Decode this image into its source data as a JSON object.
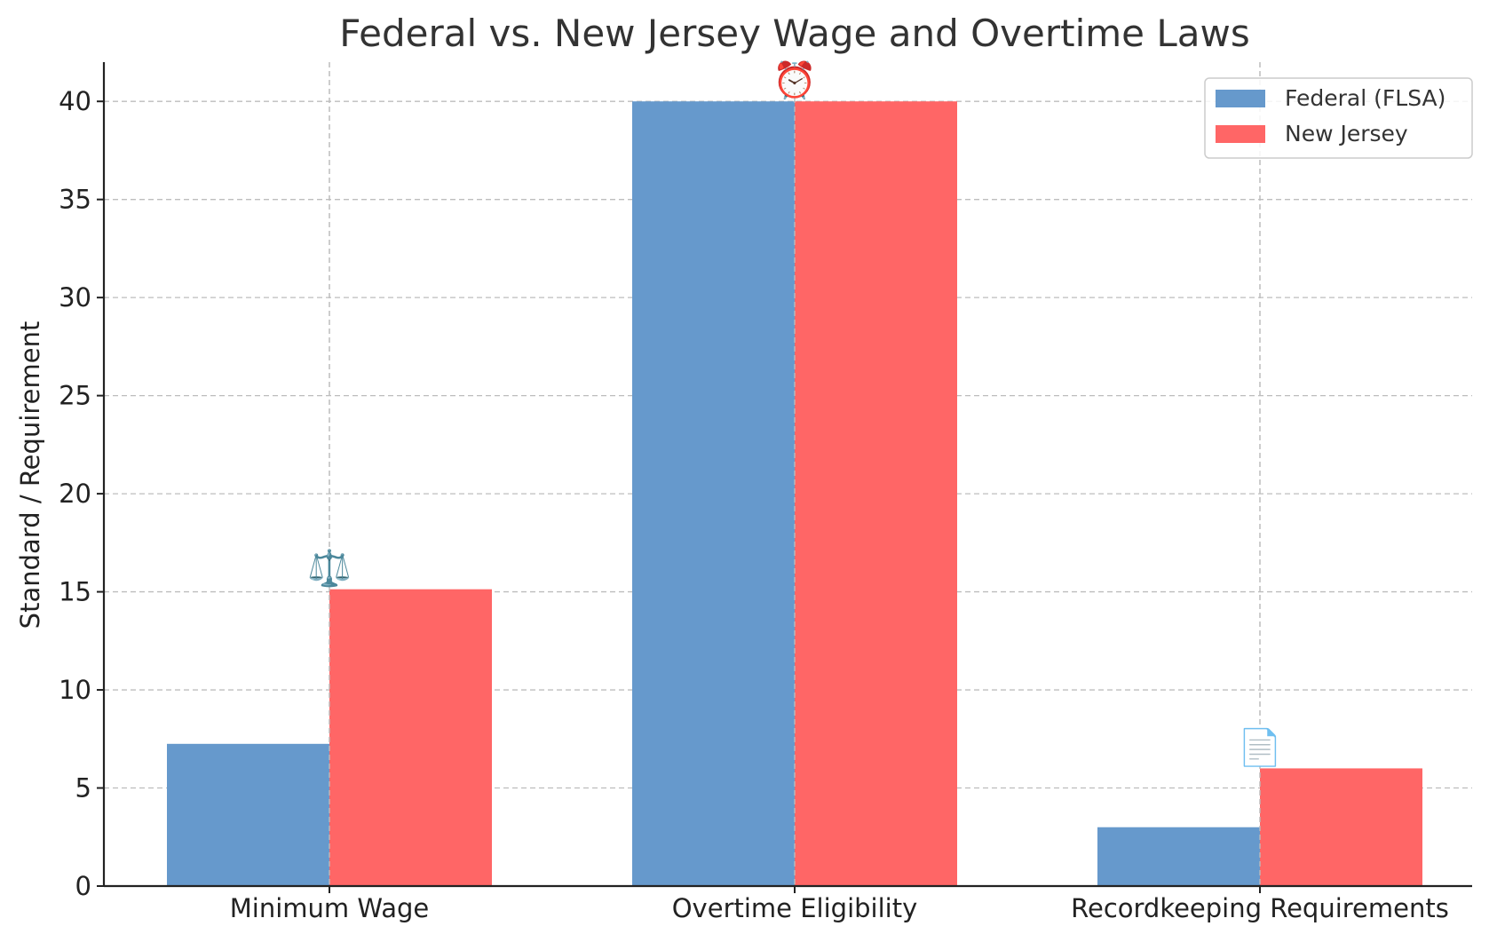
{
  "chart_data": {
    "type": "bar",
    "title": "Federal vs. New Jersey Wage and Overtime Laws",
    "xlabel": "",
    "ylabel": "Standard / Requirement",
    "categories": [
      "Minimum Wage",
      "Overtime Eligibility",
      "Recordkeeping Requirements"
    ],
    "series": [
      {
        "name": "Federal (FLSA)",
        "values": [
          7.25,
          40,
          3
        ],
        "color": "#6699cc"
      },
      {
        "name": "New Jersey",
        "values": [
          15.13,
          40,
          6
        ],
        "color": "#ff6666"
      }
    ],
    "ylim": [
      0,
      42
    ],
    "yticks": [
      0,
      5,
      10,
      15,
      20,
      25,
      30,
      35,
      40
    ],
    "grid": true,
    "legend_position": "top-right",
    "annotations": [
      {
        "category": "Minimum Wage",
        "text": "⚖️",
        "icon": "scales-icon"
      },
      {
        "category": "Overtime Eligibility",
        "text": "⏰",
        "icon": "clock-icon"
      },
      {
        "category": "Recordkeeping Requirements",
        "text": "📄",
        "icon": "document-icon"
      }
    ]
  }
}
